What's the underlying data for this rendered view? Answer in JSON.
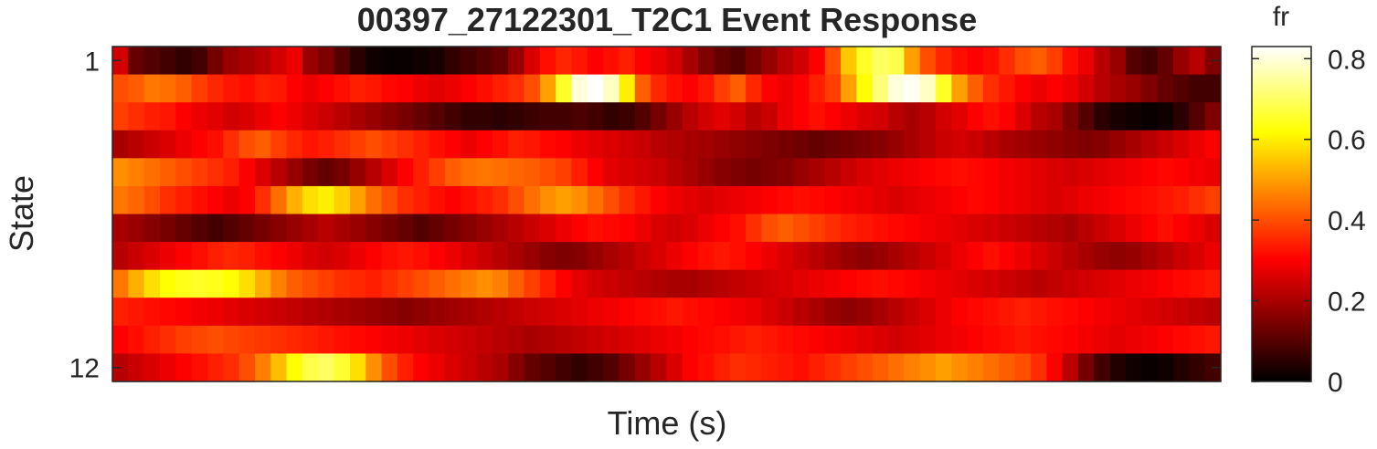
{
  "chart_data": {
    "type": "heatmap",
    "title": "00397_27122301_T2C1 Event Response",
    "xlabel": "Time (s)",
    "ylabel": "State",
    "y_tick_labels": [
      "1",
      "12"
    ],
    "colorbar": {
      "label": "fr",
      "colormap": "hot",
      "clim": [
        0,
        0.83
      ],
      "ticks": [
        "0",
        "0.2",
        "0.4",
        "0.6",
        "0.8"
      ]
    },
    "n_time_bins": 70,
    "rows": [
      {
        "state": 1,
        "values": [
          0.25,
          0.12,
          0.1,
          0.08,
          0.06,
          0.08,
          0.14,
          0.18,
          0.2,
          0.22,
          0.25,
          0.28,
          0.18,
          0.15,
          0.1,
          0.05,
          0.02,
          0.01,
          0.01,
          0.02,
          0.03,
          0.06,
          0.08,
          0.1,
          0.12,
          0.18,
          0.26,
          0.32,
          0.35,
          0.33,
          0.3,
          0.32,
          0.34,
          0.3,
          0.28,
          0.25,
          0.2,
          0.15,
          0.12,
          0.1,
          0.14,
          0.18,
          0.22,
          0.25,
          0.3,
          0.4,
          0.55,
          0.65,
          0.7,
          0.68,
          0.5,
          0.4,
          0.35,
          0.32,
          0.3,
          0.32,
          0.36,
          0.4,
          0.42,
          0.38,
          0.32,
          0.28,
          0.22,
          0.18,
          0.1,
          0.08,
          0.12,
          0.18,
          0.22,
          0.15
        ]
      },
      {
        "state": 2,
        "values": [
          0.4,
          0.42,
          0.45,
          0.44,
          0.42,
          0.38,
          0.35,
          0.33,
          0.32,
          0.34,
          0.33,
          0.3,
          0.28,
          0.3,
          0.32,
          0.34,
          0.33,
          0.31,
          0.3,
          0.28,
          0.27,
          0.28,
          0.3,
          0.32,
          0.34,
          0.36,
          0.4,
          0.5,
          0.65,
          0.8,
          0.83,
          0.78,
          0.6,
          0.42,
          0.35,
          0.32,
          0.3,
          0.33,
          0.38,
          0.42,
          0.35,
          0.3,
          0.28,
          0.3,
          0.34,
          0.38,
          0.5,
          0.62,
          0.72,
          0.8,
          0.82,
          0.78,
          0.65,
          0.5,
          0.42,
          0.36,
          0.33,
          0.3,
          0.28,
          0.3,
          0.28,
          0.25,
          0.22,
          0.2,
          0.18,
          0.15,
          0.12,
          0.1,
          0.08,
          0.08
        ]
      },
      {
        "state": 3,
        "values": [
          0.38,
          0.36,
          0.34,
          0.33,
          0.3,
          0.28,
          0.27,
          0.25,
          0.26,
          0.28,
          0.3,
          0.28,
          0.26,
          0.24,
          0.22,
          0.2,
          0.18,
          0.16,
          0.14,
          0.12,
          0.1,
          0.08,
          0.06,
          0.06,
          0.05,
          0.06,
          0.07,
          0.08,
          0.08,
          0.09,
          0.08,
          0.06,
          0.07,
          0.1,
          0.14,
          0.18,
          0.22,
          0.25,
          0.27,
          0.25,
          0.22,
          0.24,
          0.28,
          0.3,
          0.32,
          0.3,
          0.28,
          0.26,
          0.25,
          0.22,
          0.2,
          0.22,
          0.25,
          0.27,
          0.3,
          0.32,
          0.3,
          0.26,
          0.22,
          0.2,
          0.15,
          0.1,
          0.05,
          0.03,
          0.02,
          0.01,
          0.02,
          0.05,
          0.1,
          0.15
        ]
      },
      {
        "state": 4,
        "values": [
          0.2,
          0.22,
          0.24,
          0.26,
          0.28,
          0.3,
          0.32,
          0.36,
          0.4,
          0.42,
          0.38,
          0.35,
          0.33,
          0.34,
          0.36,
          0.38,
          0.4,
          0.38,
          0.36,
          0.34,
          0.32,
          0.3,
          0.28,
          0.3,
          0.32,
          0.34,
          0.33,
          0.31,
          0.3,
          0.28,
          0.27,
          0.26,
          0.25,
          0.24,
          0.22,
          0.21,
          0.2,
          0.19,
          0.18,
          0.17,
          0.16,
          0.15,
          0.14,
          0.13,
          0.12,
          0.13,
          0.14,
          0.15,
          0.16,
          0.18,
          0.2,
          0.22,
          0.24,
          0.25,
          0.24,
          0.22,
          0.2,
          0.19,
          0.18,
          0.17,
          0.16,
          0.15,
          0.16,
          0.18,
          0.2,
          0.22,
          0.24,
          0.26,
          0.28,
          0.3
        ]
      },
      {
        "state": 5,
        "values": [
          0.48,
          0.46,
          0.44,
          0.42,
          0.4,
          0.38,
          0.36,
          0.34,
          0.3,
          0.26,
          0.22,
          0.18,
          0.14,
          0.12,
          0.14,
          0.18,
          0.22,
          0.26,
          0.3,
          0.34,
          0.38,
          0.42,
          0.44,
          0.45,
          0.44,
          0.43,
          0.42,
          0.4,
          0.38,
          0.34,
          0.3,
          0.27,
          0.26,
          0.25,
          0.24,
          0.22,
          0.2,
          0.18,
          0.16,
          0.15,
          0.14,
          0.15,
          0.16,
          0.18,
          0.2,
          0.22,
          0.24,
          0.26,
          0.27,
          0.28,
          0.29,
          0.3,
          0.31,
          0.32,
          0.31,
          0.3,
          0.29,
          0.28,
          0.27,
          0.26,
          0.25,
          0.26,
          0.27,
          0.28,
          0.29,
          0.3,
          0.31,
          0.3,
          0.29,
          0.28
        ]
      },
      {
        "state": 6,
        "values": [
          0.45,
          0.43,
          0.4,
          0.36,
          0.34,
          0.32,
          0.3,
          0.28,
          0.3,
          0.36,
          0.44,
          0.52,
          0.58,
          0.6,
          0.56,
          0.5,
          0.44,
          0.4,
          0.36,
          0.34,
          0.32,
          0.3,
          0.32,
          0.34,
          0.36,
          0.4,
          0.44,
          0.48,
          0.5,
          0.48,
          0.44,
          0.4,
          0.36,
          0.33,
          0.3,
          0.28,
          0.27,
          0.26,
          0.27,
          0.28,
          0.29,
          0.3,
          0.31,
          0.32,
          0.31,
          0.3,
          0.29,
          0.28,
          0.27,
          0.26,
          0.27,
          0.28,
          0.29,
          0.3,
          0.31,
          0.3,
          0.29,
          0.28,
          0.27,
          0.26,
          0.27,
          0.28,
          0.29,
          0.3,
          0.31,
          0.32,
          0.33,
          0.34,
          0.36,
          0.38
        ]
      },
      {
        "state": 7,
        "values": [
          0.2,
          0.18,
          0.16,
          0.14,
          0.12,
          0.1,
          0.08,
          0.1,
          0.12,
          0.14,
          0.16,
          0.18,
          0.2,
          0.22,
          0.2,
          0.18,
          0.16,
          0.14,
          0.12,
          0.1,
          0.12,
          0.14,
          0.16,
          0.18,
          0.2,
          0.22,
          0.24,
          0.26,
          0.28,
          0.3,
          0.32,
          0.31,
          0.3,
          0.28,
          0.26,
          0.25,
          0.26,
          0.28,
          0.3,
          0.32,
          0.36,
          0.4,
          0.42,
          0.4,
          0.38,
          0.36,
          0.34,
          0.33,
          0.32,
          0.31,
          0.3,
          0.29,
          0.28,
          0.27,
          0.26,
          0.25,
          0.24,
          0.23,
          0.22,
          0.21,
          0.2,
          0.22,
          0.24,
          0.26,
          0.28,
          0.3,
          0.32,
          0.3,
          0.28,
          0.26
        ]
      },
      {
        "state": 8,
        "values": [
          0.22,
          0.24,
          0.26,
          0.28,
          0.3,
          0.32,
          0.34,
          0.35,
          0.34,
          0.32,
          0.3,
          0.28,
          0.26,
          0.25,
          0.26,
          0.28,
          0.3,
          0.32,
          0.33,
          0.32,
          0.3,
          0.28,
          0.26,
          0.24,
          0.22,
          0.2,
          0.18,
          0.16,
          0.15,
          0.16,
          0.18,
          0.2,
          0.22,
          0.24,
          0.26,
          0.28,
          0.3,
          0.32,
          0.33,
          0.32,
          0.3,
          0.28,
          0.26,
          0.24,
          0.22,
          0.2,
          0.18,
          0.17,
          0.18,
          0.2,
          0.22,
          0.24,
          0.26,
          0.28,
          0.3,
          0.32,
          0.3,
          0.28,
          0.26,
          0.24,
          0.22,
          0.2,
          0.18,
          0.17,
          0.18,
          0.2,
          0.22,
          0.24,
          0.26,
          0.28
        ]
      },
      {
        "state": 9,
        "values": [
          0.45,
          0.52,
          0.58,
          0.62,
          0.64,
          0.65,
          0.64,
          0.62,
          0.58,
          0.52,
          0.46,
          0.42,
          0.4,
          0.38,
          0.36,
          0.35,
          0.34,
          0.36,
          0.38,
          0.4,
          0.42,
          0.44,
          0.46,
          0.48,
          0.46,
          0.42,
          0.38,
          0.34,
          0.3,
          0.27,
          0.25,
          0.24,
          0.23,
          0.22,
          0.21,
          0.2,
          0.2,
          0.21,
          0.22,
          0.23,
          0.24,
          0.25,
          0.26,
          0.27,
          0.28,
          0.29,
          0.3,
          0.31,
          0.32,
          0.31,
          0.3,
          0.29,
          0.28,
          0.27,
          0.26,
          0.25,
          0.24,
          0.23,
          0.22,
          0.23,
          0.24,
          0.25,
          0.26,
          0.27,
          0.28,
          0.29,
          0.3,
          0.31,
          0.32,
          0.33
        ]
      },
      {
        "state": 10,
        "values": [
          0.34,
          0.33,
          0.32,
          0.31,
          0.3,
          0.29,
          0.28,
          0.27,
          0.26,
          0.25,
          0.24,
          0.23,
          0.22,
          0.21,
          0.2,
          0.19,
          0.18,
          0.17,
          0.16,
          0.17,
          0.18,
          0.19,
          0.2,
          0.21,
          0.22,
          0.23,
          0.24,
          0.25,
          0.26,
          0.27,
          0.28,
          0.29,
          0.3,
          0.31,
          0.32,
          0.33,
          0.32,
          0.31,
          0.3,
          0.29,
          0.28,
          0.26,
          0.24,
          0.22,
          0.2,
          0.18,
          0.17,
          0.18,
          0.2,
          0.22,
          0.24,
          0.26,
          0.28,
          0.3,
          0.31,
          0.32,
          0.33,
          0.34,
          0.33,
          0.32,
          0.31,
          0.3,
          0.29,
          0.28,
          0.27,
          0.26,
          0.25,
          0.24,
          0.23,
          0.22
        ]
      },
      {
        "state": 11,
        "values": [
          0.3,
          0.32,
          0.34,
          0.36,
          0.38,
          0.39,
          0.4,
          0.39,
          0.38,
          0.37,
          0.36,
          0.35,
          0.34,
          0.33,
          0.32,
          0.31,
          0.3,
          0.29,
          0.28,
          0.27,
          0.26,
          0.25,
          0.24,
          0.23,
          0.22,
          0.21,
          0.2,
          0.21,
          0.22,
          0.23,
          0.24,
          0.25,
          0.26,
          0.27,
          0.28,
          0.29,
          0.3,
          0.31,
          0.32,
          0.33,
          0.34,
          0.33,
          0.32,
          0.31,
          0.3,
          0.29,
          0.28,
          0.27,
          0.26,
          0.25,
          0.26,
          0.27,
          0.28,
          0.29,
          0.3,
          0.31,
          0.32,
          0.33,
          0.32,
          0.31,
          0.3,
          0.29,
          0.28,
          0.27,
          0.28,
          0.29,
          0.3,
          0.31,
          0.32,
          0.33
        ]
      },
      {
        "state": 12,
        "values": [
          0.22,
          0.24,
          0.26,
          0.28,
          0.3,
          0.32,
          0.34,
          0.36,
          0.4,
          0.46,
          0.54,
          0.62,
          0.68,
          0.7,
          0.66,
          0.58,
          0.48,
          0.4,
          0.34,
          0.3,
          0.28,
          0.26,
          0.24,
          0.22,
          0.2,
          0.16,
          0.12,
          0.1,
          0.08,
          0.06,
          0.08,
          0.1,
          0.14,
          0.18,
          0.22,
          0.26,
          0.3,
          0.32,
          0.34,
          0.36,
          0.35,
          0.34,
          0.33,
          0.32,
          0.34,
          0.36,
          0.38,
          0.4,
          0.42,
          0.44,
          0.46,
          0.48,
          0.5,
          0.48,
          0.46,
          0.44,
          0.42,
          0.4,
          0.36,
          0.3,
          0.22,
          0.14,
          0.08,
          0.04,
          0.02,
          0.01,
          0.02,
          0.04,
          0.06,
          0.08
        ]
      }
    ]
  }
}
